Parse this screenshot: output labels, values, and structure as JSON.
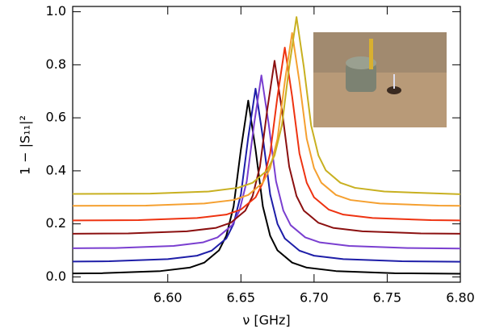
{
  "chart_data": {
    "type": "line",
    "x_label": "ν [GHz]",
    "y_label": "1 − |S₁₁|²",
    "xlim": [
      6.535,
      6.8
    ],
    "ylim": [
      -0.02,
      1.02
    ],
    "xticks": [
      {
        "value": 6.6,
        "label": "6.60"
      },
      6.65,
      {
        "value": 6.7,
        "label": "6.70"
      },
      6.75,
      {
        "value": 6.8,
        "label": "6.80"
      }
    ],
    "yticks": [
      {
        "value": 0,
        "label": "0.0"
      },
      0.2,
      0.4,
      0.6,
      0.8,
      {
        "value": 1,
        "label": "1.0"
      }
    ],
    "series": [
      {
        "color": "#000000",
        "x": [
          6.535,
          6.555,
          6.595,
          6.615,
          6.625,
          6.635,
          6.64,
          6.645,
          6.65,
          6.655,
          6.66,
          6.665,
          6.67,
          6.675,
          6.685,
          6.695,
          6.715,
          6.755,
          6.8
        ],
        "values": [
          0.013,
          0.014,
          0.022,
          0.035,
          0.054,
          0.1,
          0.155,
          0.266,
          0.481,
          0.665,
          0.481,
          0.266,
          0.155,
          0.1,
          0.054,
          0.035,
          0.022,
          0.014,
          0.012
        ]
      },
      {
        "color": "#1e1ea8",
        "x": [
          6.535,
          6.56,
          6.6,
          6.62,
          6.63,
          6.64,
          6.645,
          6.65,
          6.655,
          6.66,
          6.665,
          6.67,
          6.675,
          6.68,
          6.69,
          6.7,
          6.72,
          6.76,
          6.8
        ],
        "values": [
          0.058,
          0.059,
          0.067,
          0.08,
          0.099,
          0.145,
          0.2,
          0.311,
          0.526,
          0.71,
          0.526,
          0.311,
          0.2,
          0.145,
          0.099,
          0.08,
          0.067,
          0.059,
          0.057
        ]
      },
      {
        "color": "#7a3fd0",
        "x": [
          6.535,
          6.564,
          6.604,
          6.624,
          6.634,
          6.644,
          6.649,
          6.654,
          6.659,
          6.664,
          6.669,
          6.674,
          6.679,
          6.684,
          6.694,
          6.704,
          6.724,
          6.764,
          6.8
        ],
        "values": [
          0.108,
          0.109,
          0.117,
          0.13,
          0.149,
          0.195,
          0.25,
          0.361,
          0.576,
          0.76,
          0.576,
          0.361,
          0.25,
          0.195,
          0.149,
          0.13,
          0.117,
          0.109,
          0.107
        ]
      },
      {
        "color": "#8b1010",
        "x": [
          6.535,
          6.573,
          6.613,
          6.633,
          6.643,
          6.653,
          6.658,
          6.663,
          6.668,
          6.673,
          6.678,
          6.683,
          6.688,
          6.693,
          6.703,
          6.713,
          6.733,
          6.773,
          6.8
        ],
        "values": [
          0.163,
          0.164,
          0.172,
          0.185,
          0.204,
          0.25,
          0.305,
          0.416,
          0.631,
          0.815,
          0.631,
          0.416,
          0.305,
          0.25,
          0.204,
          0.185,
          0.172,
          0.164,
          0.163
        ]
      },
      {
        "color": "#ee3311",
        "x": [
          6.535,
          6.58,
          6.62,
          6.64,
          6.65,
          6.66,
          6.665,
          6.67,
          6.675,
          6.68,
          6.685,
          6.69,
          6.695,
          6.7,
          6.71,
          6.72,
          6.74,
          6.78,
          6.8
        ],
        "values": [
          0.213,
          0.214,
          0.222,
          0.235,
          0.254,
          0.3,
          0.355,
          0.466,
          0.681,
          0.865,
          0.681,
          0.466,
          0.355,
          0.3,
          0.254,
          0.235,
          0.222,
          0.214,
          0.213
        ]
      },
      {
        "color": "#f5a030",
        "x": [
          6.535,
          6.585,
          6.625,
          6.645,
          6.655,
          6.665,
          6.67,
          6.675,
          6.68,
          6.685,
          6.69,
          6.695,
          6.7,
          6.705,
          6.715,
          6.725,
          6.745,
          6.785,
          6.8
        ],
        "values": [
          0.268,
          0.269,
          0.277,
          0.29,
          0.309,
          0.355,
          0.41,
          0.521,
          0.736,
          0.92,
          0.736,
          0.521,
          0.41,
          0.355,
          0.309,
          0.29,
          0.277,
          0.269,
          0.268
        ]
      },
      {
        "color": "#c8b020",
        "x": [
          6.535,
          6.588,
          6.628,
          6.648,
          6.658,
          6.668,
          6.673,
          6.678,
          6.683,
          6.688,
          6.693,
          6.698,
          6.703,
          6.708,
          6.718,
          6.728,
          6.748,
          6.788,
          6.8
        ],
        "values": [
          0.313,
          0.314,
          0.322,
          0.336,
          0.355,
          0.402,
          0.458,
          0.571,
          0.792,
          0.98,
          0.792,
          0.571,
          0.458,
          0.402,
          0.355,
          0.336,
          0.322,
          0.314,
          0.312
        ]
      }
    ]
  }
}
